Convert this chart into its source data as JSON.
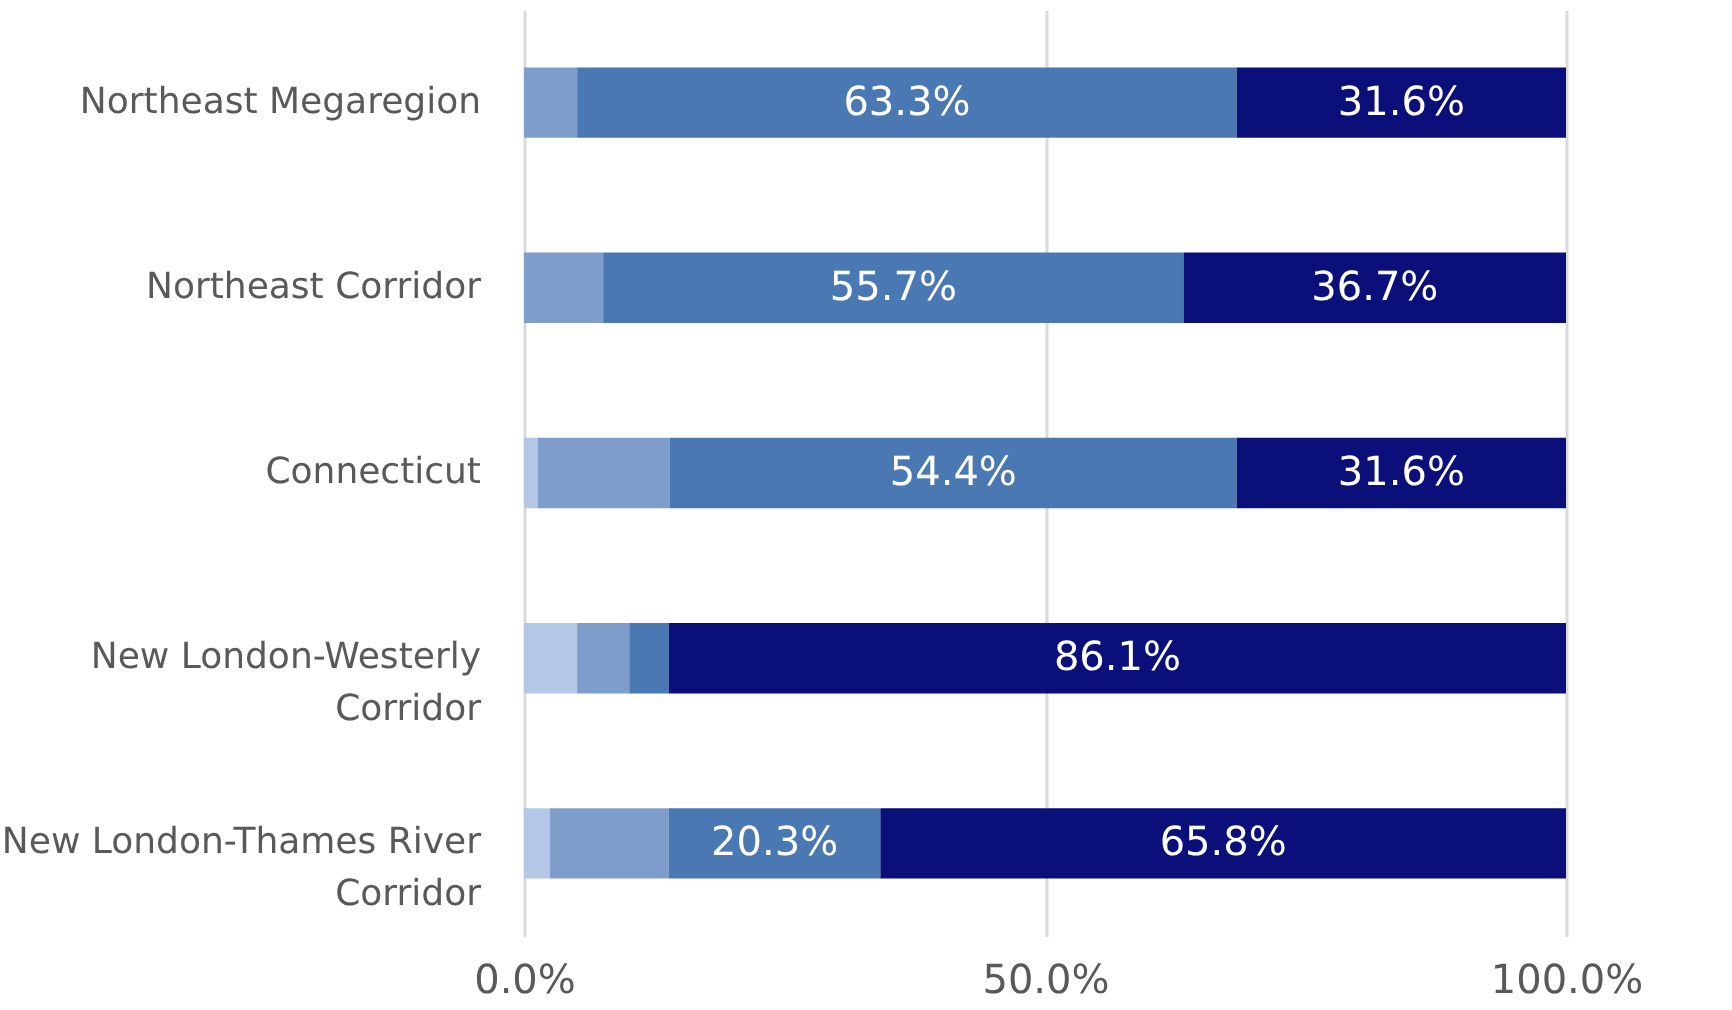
{
  "chart_data": {
    "type": "bar",
    "orientation": "horizontal",
    "stacked": true,
    "categories": [
      "Northeast Megaregion",
      "Northeast Corridor",
      "Connecticut",
      "New London-Westerly Corridor",
      "New London-Thames River Corridor"
    ],
    "series": [
      {
        "color": "#b4c7e7",
        "values": [
          null,
          null,
          1.3,
          5.1,
          2.5
        ],
        "value_labels": [
          null,
          null,
          null,
          null,
          null
        ]
      },
      {
        "color": "#7f9dcb",
        "values": [
          5.1,
          7.6,
          12.7,
          5.0,
          11.4
        ],
        "value_labels": [
          null,
          null,
          null,
          null,
          null
        ]
      },
      {
        "color": "#4a78b2",
        "values": [
          63.3,
          55.7,
          54.4,
          3.8,
          20.3
        ],
        "value_labels": [
          "63.3%",
          "55.7%",
          "54.4%",
          null,
          "20.3%"
        ]
      },
      {
        "color": "#0b0f7a",
        "values": [
          31.6,
          36.7,
          31.6,
          86.1,
          65.8
        ],
        "value_labels": [
          "31.6%",
          "36.7%",
          "31.6%",
          "86.1%",
          "65.8%"
        ]
      }
    ],
    "xlim": [
      0,
      100
    ],
    "xticks": [
      {
        "value": 0,
        "label": "0.0%"
      },
      {
        "value": 50,
        "label": "50.0%"
      },
      {
        "value": 100,
        "label": "100.0%"
      }
    ],
    "grid": "x",
    "legend": false
  }
}
